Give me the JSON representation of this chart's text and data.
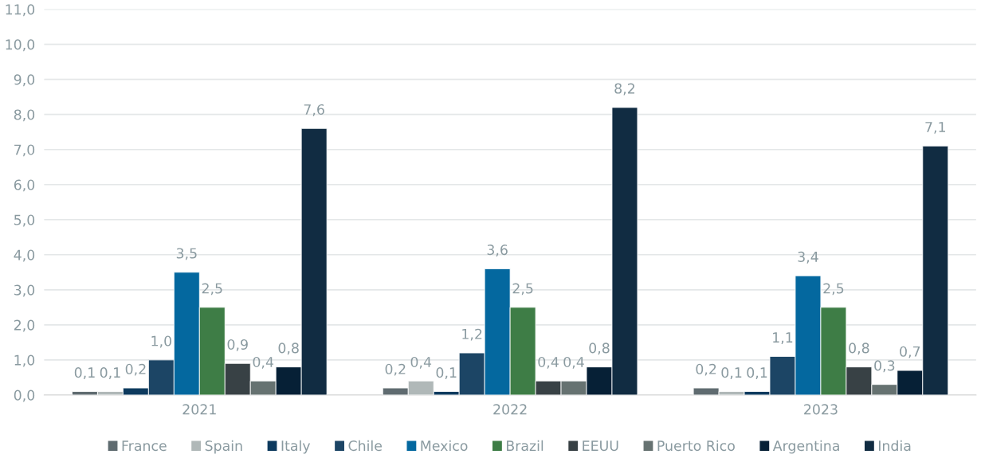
{
  "chart_data": {
    "type": "bar",
    "categories": [
      "2021",
      "2022",
      "2023"
    ],
    "series": [
      {
        "name": "France",
        "color": "#5f6b70",
        "values": [
          0.1,
          0.2,
          0.2
        ],
        "value_labels": [
          "0,1",
          "0,2",
          "0,2"
        ]
      },
      {
        "name": "Spain",
        "color": "#b0b8b8",
        "values": [
          0.1,
          0.4,
          0.1
        ],
        "value_labels": [
          "0,1",
          "0,4",
          "0,1"
        ]
      },
      {
        "name": "Italy",
        "color": "#0d3a5e",
        "values": [
          0.2,
          0.1,
          0.1
        ],
        "value_labels": [
          "0,2",
          "0,1",
          "0,1"
        ]
      },
      {
        "name": "Chile",
        "color": "#1c4565",
        "values": [
          1.0,
          1.2,
          1.1
        ],
        "value_labels": [
          "1,0",
          "1,2",
          "1,1"
        ]
      },
      {
        "name": "Mexico",
        "color": "#04689f",
        "values": [
          3.5,
          3.6,
          3.4
        ],
        "value_labels": [
          "3,5",
          "3,6",
          "3,4"
        ]
      },
      {
        "name": "Brazil",
        "color": "#3e7d46",
        "values": [
          2.5,
          2.5,
          2.5
        ],
        "value_labels": [
          "2,5",
          "2,5",
          "2,5"
        ]
      },
      {
        "name": "EEUU",
        "color": "#384145",
        "values": [
          0.9,
          0.4,
          0.8
        ],
        "value_labels": [
          "0,9",
          "0,4",
          "0,8"
        ]
      },
      {
        "name": "Puerto Rico",
        "color": "#667271",
        "values": [
          0.4,
          0.4,
          0.3
        ],
        "value_labels": [
          "0,4",
          "0,4",
          "0,3"
        ]
      },
      {
        "name": "Argentina",
        "color": "#062036",
        "values": [
          0.8,
          0.8,
          0.7
        ],
        "value_labels": [
          "0,8",
          "0,8",
          "0,7"
        ]
      },
      {
        "name": "India",
        "color": "#112c42",
        "values": [
          7.6,
          8.2,
          7.1
        ],
        "value_labels": [
          "7,6",
          "8,2",
          "7,1"
        ]
      }
    ],
    "ylim": [
      0,
      11
    ],
    "yticks": [
      {
        "value": 0,
        "label": "0,0"
      },
      {
        "value": 1,
        "label": "1,0"
      },
      {
        "value": 2,
        "label": "2,0"
      },
      {
        "value": 3,
        "label": "3,0"
      },
      {
        "value": 4,
        "label": "4,0"
      },
      {
        "value": 5,
        "label": "5,0"
      },
      {
        "value": 6,
        "label": "6,0"
      },
      {
        "value": 7,
        "label": "7,0"
      },
      {
        "value": 8,
        "label": "8,0"
      },
      {
        "value": 9,
        "label": "9,0"
      },
      {
        "value": 10,
        "label": "10,0"
      },
      {
        "value": 11,
        "label": "11,0"
      }
    ],
    "grid": "y",
    "legend": "bottom"
  }
}
